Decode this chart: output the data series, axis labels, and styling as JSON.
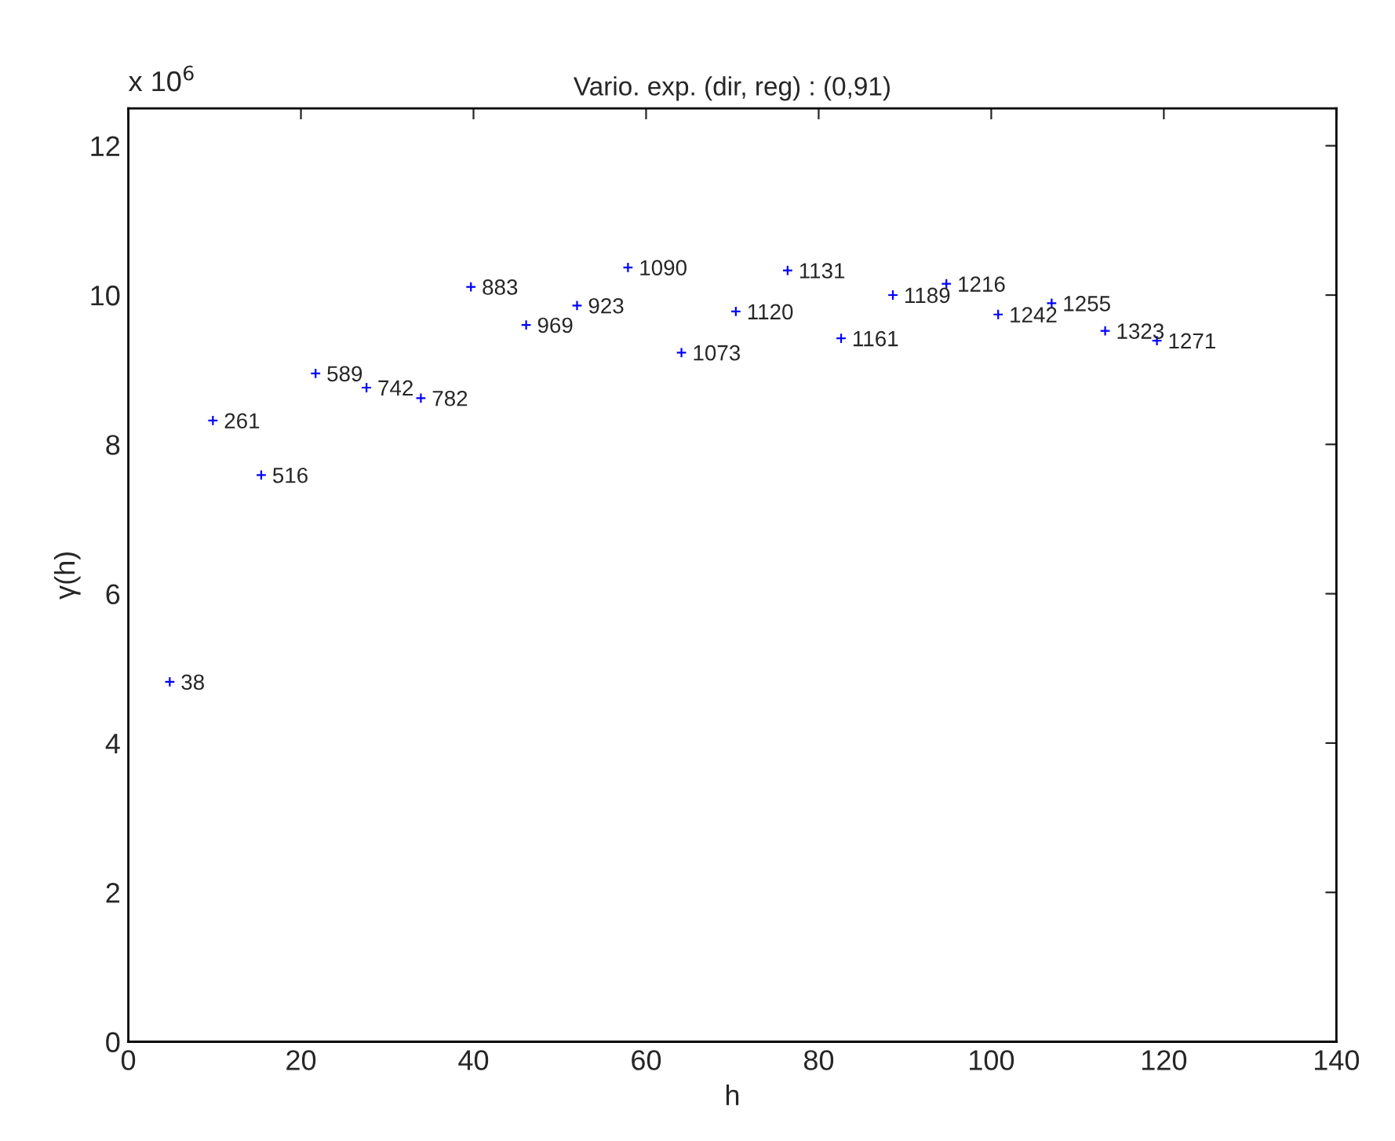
{
  "chart_data": {
    "type": "scatter",
    "title": "Vario. exp. (dir, reg) : (0,91)",
    "xlabel": "h",
    "ylabel": "γ(h)",
    "annotations": [
      "x 10$^{6}$",
      {
        "text": "38",
        "x": 4.8,
        "y": 4.82
      },
      {
        "text": "261",
        "x": 9.8,
        "y": 8.32
      },
      {
        "text": "516",
        "x": 15.4,
        "y": 7.59
      },
      {
        "text": "589",
        "x": 21.7,
        "y": 8.95
      },
      {
        "text": "742",
        "x": 27.6,
        "y": 8.76
      },
      {
        "text": "782",
        "x": 33.9,
        "y": 8.62
      },
      {
        "text": "883",
        "x": 39.7,
        "y": 10.11
      },
      {
        "text": "969",
        "x": 46.1,
        "y": 9.6
      },
      {
        "text": "923",
        "x": 52.0,
        "y": 9.86
      },
      {
        "text": "1090",
        "x": 57.9,
        "y": 10.37
      },
      {
        "text": "1073",
        "x": 64.1,
        "y": 9.23
      },
      {
        "text": "1120",
        "x": 70.4,
        "y": 9.78
      },
      {
        "text": "1131",
        "x": 76.4,
        "y": 10.33
      },
      {
        "text": "1161",
        "x": 82.6,
        "y": 9.42
      },
      {
        "text": "1189",
        "x": 88.6,
        "y": 10.0
      },
      {
        "text": "1216",
        "x": 94.8,
        "y": 10.15
      },
      {
        "text": "1242",
        "x": 100.8,
        "y": 9.74
      },
      {
        "text": "1255",
        "x": 107.0,
        "y": 9.89
      },
      {
        "text": "1323",
        "x": 113.2,
        "y": 9.52
      },
      {
        "text": "1271",
        "x": 119.2,
        "y": 9.39
      }
    ],
    "x": [
      4.8,
      9.8,
      15.4,
      21.7,
      27.6,
      33.9,
      39.7,
      46.1,
      52.0,
      57.9,
      64.1,
      70.4,
      76.4,
      82.6,
      88.6,
      94.8,
      100.8,
      107.0,
      113.2,
      119.2
    ],
    "values": [
      4.82,
      8.32,
      7.59,
      8.95,
      8.76,
      8.62,
      10.11,
      9.6,
      9.86,
      10.37,
      9.23,
      9.78,
      10.33,
      9.42,
      10.0,
      10.15,
      9.74,
      9.89,
      9.52,
      9.39
    ],
    "color": "#0000ff",
    "marker": "cross",
    "xlim": [
      0,
      140
    ],
    "xticks": [
      0,
      20,
      40,
      60,
      80,
      100,
      120,
      140
    ],
    "ylim": [
      0,
      12.5
    ],
    "yticks": [
      0,
      2,
      4,
      6,
      8,
      10,
      12
    ],
    "grid": false,
    "legend": false
  }
}
